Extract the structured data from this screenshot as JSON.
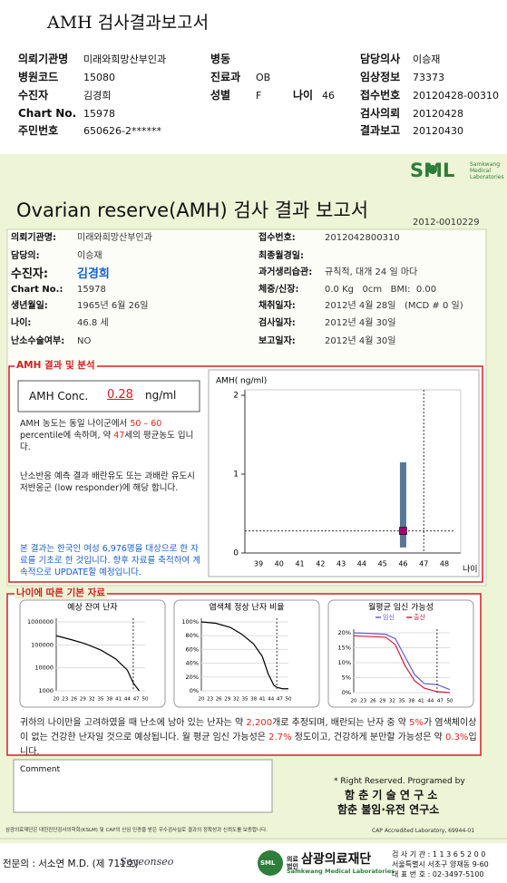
{
  "header": {
    "title": "AMH 검사결과보고서",
    "fields": [
      {
        "label": "의뢰기관명",
        "value": "미래와희망산부인과"
      },
      {
        "label": "병동"
      },
      {
        "label": "담당의사",
        "value": "이승재"
      },
      {
        "label": "병원코드",
        "value": "15080"
      },
      {
        "label": "진료과",
        "value": "OB"
      },
      {
        "label": "임상정보",
        "value": "73373"
      },
      {
        "label": "수진자",
        "value": "김경희"
      },
      {
        "label": "성별",
        "value": "F"
      },
      {
        "label": "나이",
        "value": "46"
      },
      {
        "label": "접수번호",
        "value": "20120428-00310"
      },
      {
        "label": "Chart No.",
        "value": "15978"
      },
      {
        "label": "검사의뢰",
        "value": "20120428"
      },
      {
        "label": "주민번호",
        "value": "650626-2******"
      },
      {
        "label": "결과보고",
        "value": "20120430"
      }
    ]
  },
  "report": {
    "logo": "SML",
    "logo_sub": [
      "Samkwang",
      "Medical",
      "Laboratories"
    ],
    "title": "Ovarian reserve(AMH) 검사 결과 보고서",
    "number": "2012-0010229",
    "info": [
      {
        "label": "의뢰기관명:",
        "value": "미래와희망산부인과"
      },
      {
        "label": "접수번호:",
        "value": "2012042800310"
      },
      {
        "label": "담당의:",
        "value": "이승재"
      },
      {
        "label": "최종월경일:"
      },
      {
        "label": "수진자:",
        "value": "김경희"
      },
      {
        "label": "과거생리습관:",
        "value": "규칙적, 대개 24 일 마다"
      },
      {
        "label": "Chart No.:",
        "value": "15978"
      },
      {
        "label": "체중/신장:",
        "value": "0.0 Kg   0cm   BMI:  0.00"
      },
      {
        "label": "생년월일:",
        "value": "1965년 6월 26일"
      },
      {
        "label": "채취일자:",
        "value": "2012년 4월 28일   (MCD # 0 일)"
      },
      {
        "label": "나이:",
        "value": "46.8 세"
      },
      {
        "label": "검사일자:",
        "value": "2012년 4월 30일"
      },
      {
        "label": "난소수술여부:",
        "value": "NO"
      },
      {
        "label": "보고일자:",
        "value": "2012년 4월 30일"
      }
    ],
    "result": {
      "title": "AMH 결과 및 분석",
      "amh_label": "AMH Conc.",
      "amh_value": "0.28",
      "amh_unit": "ng/ml",
      "paragraphs": [
        [
          {
            "text": "AMH 농도는 동일 나이군에서 "
          },
          {
            "text": "50 – 60",
            "color": "#e0261b"
          },
          {
            "text": " percentile에 속하며, 약 "
          },
          {
            "text": "47",
            "color": "#e0261b"
          },
          {
            "text": "세의 평균농도 입니다."
          }
        ],
        [
          {
            "text": "난소반응 예측 결과 배란유도 또는 과배란 유도시 저반응군 (low responder)에 해당 합니다."
          }
        ],
        [
          {
            "text": "본 결과는 한국인 여성 6,976명을 대상으로 한 자료를 기초로 한 것입니다. 향후 자료를 축적하여 계속적으로 UPDATE할 예정입니다.",
            "color": "#1a5fd0"
          }
        ]
      ],
      "chart": {
        "type": "range_bar",
        "y_label": "AMH( ng/ml)",
        "x_label": "나이",
        "ylim": [
          0,
          2
        ],
        "yticks": [
          0,
          1,
          2
        ],
        "xlim": [
          38.3,
          48.7
        ],
        "xticks": [
          39,
          40,
          41,
          42,
          43,
          44,
          45,
          46,
          47,
          48
        ],
        "bar": {
          "x": 46,
          "low": 0.07,
          "high": 1.15,
          "color": "#5a7896"
        },
        "point": {
          "x": 46,
          "y": 0.28,
          "color": "#9b0a6e"
        },
        "ref_x": 47
      }
    }
  },
  "basic": {
    "title": "나이에 따른 기본 자료",
    "charts": [
      {
        "type": "line",
        "title": "예상 잔여 난자",
        "log_scale": true,
        "ylim": [
          1000,
          1000000
        ],
        "yticks": [
          1000,
          10000,
          100000,
          1000000
        ],
        "xlim": [
          20,
          50
        ],
        "xticks": [
          20,
          23,
          26,
          29,
          32,
          35,
          38,
          41,
          44,
          47,
          50
        ],
        "x": [
          20,
          25,
          30,
          35,
          40,
          44,
          46,
          48
        ],
        "values": [
          250000,
          170000,
          110000,
          60000,
          25000,
          8000,
          2200,
          1000
        ],
        "color": "#000000",
        "ref_x": 46
      },
      {
        "type": "line",
        "title": "염색체 정상 난자 비율",
        "ylim": [
          0,
          100
        ],
        "yticks": [
          {
            "value": 0,
            "label": "0%"
          },
          {
            "value": 20,
            "label": "20%"
          },
          {
            "value": 40,
            "label": "40%"
          },
          {
            "value": 60,
            "label": "60%"
          },
          {
            "value": 80,
            "label": "80%"
          },
          {
            "value": 100,
            "label": "100%"
          }
        ],
        "xlim": [
          20,
          50
        ],
        "xticks": [
          20,
          23,
          26,
          29,
          32,
          35,
          38,
          41,
          44,
          47,
          50
        ],
        "x": [
          20,
          25,
          30,
          34,
          38,
          41,
          43,
          45,
          46,
          48,
          50
        ],
        "values": [
          100,
          98,
          92,
          82,
          68,
          50,
          25,
          8,
          5,
          3,
          3
        ],
        "color": "#000000",
        "ref_x": 46
      },
      {
        "type": "line",
        "title": "월평균 임신 가능성",
        "ylim": [
          0,
          20
        ],
        "yticks": [
          {
            "value": 0,
            "label": "0%"
          },
          {
            "value": 5,
            "label": "5%"
          },
          {
            "value": 10,
            "label": "10%"
          },
          {
            "value": 15,
            "label": "15%"
          },
          {
            "value": 20,
            "label": "20%"
          }
        ],
        "xlim": [
          20,
          50
        ],
        "xticks": [
          20,
          23,
          26,
          29,
          32,
          35,
          38,
          41,
          44,
          47,
          50
        ],
        "x": [
          20,
          30,
          33,
          36,
          39,
          42,
          46,
          50
        ],
        "series": [
          {
            "name": "임신",
            "color": "#6a5acd",
            "values": [
              20,
              19.5,
              18,
              12,
              6,
              3,
              2.7,
              1
            ]
          },
          {
            "name": "출산",
            "color": "#d0203a",
            "values": [
              19,
              18.5,
              16,
              9,
              4,
              1.5,
              0.3,
              0
            ]
          }
        ],
        "legend": "top",
        "ref_x": 46
      }
    ],
    "summary": [
      {
        "text": "귀하의 나이만을 고려하였을 때 난소에 남아 있는 난자는 약 "
      },
      {
        "text": "2,200",
        "color": "#e0261b"
      },
      {
        "text": "개로 추정되며, 배란되는 난자 중 약 "
      },
      {
        "text": "5%",
        "color": "#e0261b"
      },
      {
        "text": "가 염색체이상이 없는 건강한 난자일 것으로 예상됩니다. 월 평균 임신 가능성은 "
      },
      {
        "text": "2.7%",
        "color": "#e0261b"
      },
      {
        "text": " 정도이고, 건강하게 분만할 가능성은 약 "
      },
      {
        "text": "0.3%",
        "color": "#e0261b"
      },
      {
        "text": "입니다."
      }
    ]
  },
  "comment": {
    "label": "Comment"
  },
  "credits": [
    "* Right Reserved. Programed by",
    "함 춘 기 술 연 구 소",
    "함춘 불임·유전 연구소"
  ],
  "footer": {
    "certification": "삼광의료재단은 대한진단검사의학회(KSLM) 및 CAP의 신임 인증을 받은 우수검사실로 결과의 정확성과 신뢰도를 보증합니다.",
    "cap": "CAP  Accredited  Laboratory,  69944-01",
    "doctor": "전문의 : 서소연 M.D. (제 711호)",
    "signature": "Soyeonseo",
    "logo": "SML",
    "org_type": "의료법인",
    "org_name": "삼광의료재단",
    "org_en": "Samkwang Medical Laboratories",
    "contact": [
      "검 사 기 관 : 1 1 3 6 5 2 0 0",
      "서울특별시 서초구 양재동 9-60",
      "대 표 번 호 : 02-3497-5100"
    ]
  }
}
